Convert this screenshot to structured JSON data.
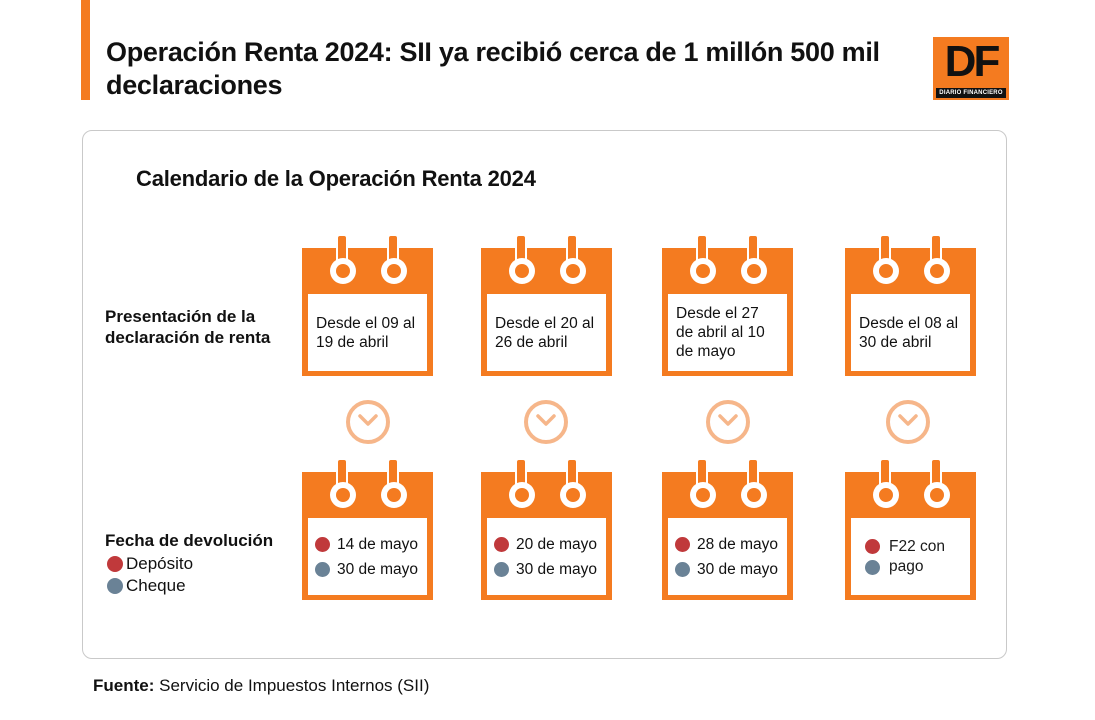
{
  "headline": "Operación Renta 2024: SII ya recibió cerca de 1 millón 500 mil declaraciones",
  "logo": {
    "mark": "DF",
    "sub": "DIARIO FINANCIERO",
    "color": "#f47b20"
  },
  "panel_title": "Calendario de la Operación Renta 2024",
  "rows": {
    "presentation_label": "Presentación de la declaración de renta",
    "return_label": "Fecha de devolución"
  },
  "legend": {
    "deposit": "Depósito",
    "check": "Cheque",
    "deposit_color": "#c0393b",
    "check_color": "#6a8296"
  },
  "presentation": [
    "Desde el 09 al 19 de abril",
    "Desde el 20 al 26 de abril",
    "Desde el 27 de abril al 10 de mayo",
    "Desde el 08 al 30 de abril"
  ],
  "returns": [
    {
      "deposit": "14 de mayo",
      "check": "30 de mayo"
    },
    {
      "deposit": "20 de mayo",
      "check": "30 de mayo"
    },
    {
      "deposit": "28 de mayo",
      "check": "30 de mayo"
    },
    {
      "deposit": "F22 con pago",
      "check": ""
    }
  ],
  "source": {
    "label": "Fuente:",
    "text": "Servicio de Impuestos Internos (SII)"
  },
  "icons": {
    "arrow": "chevron-down-icon",
    "calendar": "calendar-icon"
  }
}
